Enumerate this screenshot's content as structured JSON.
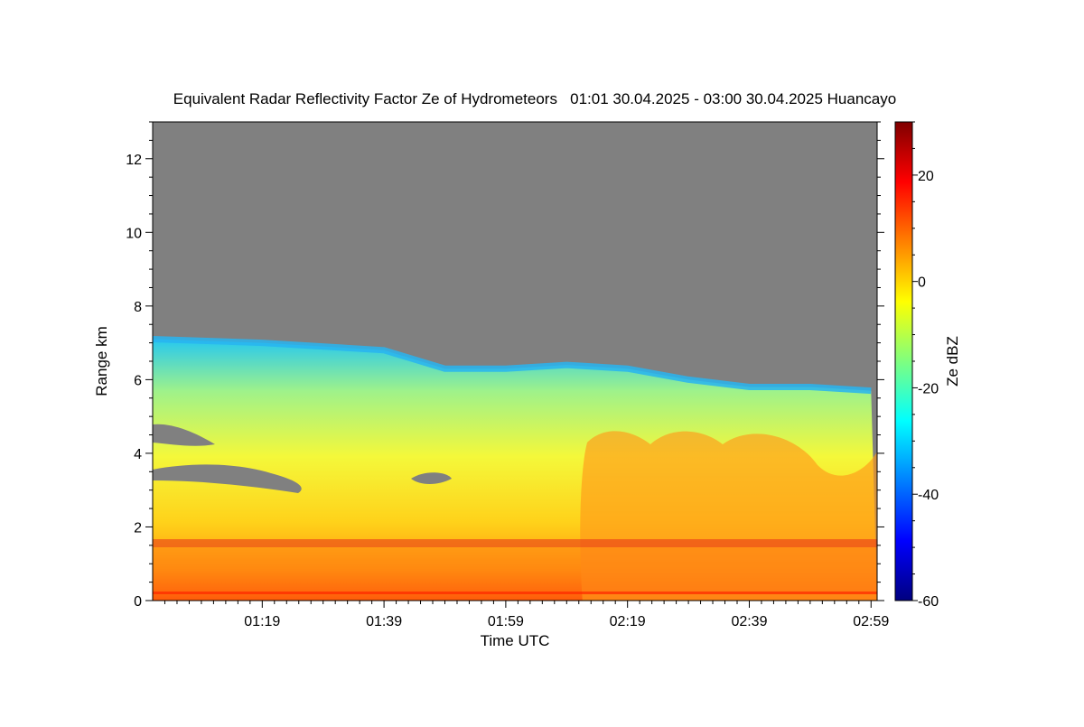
{
  "chart_data": {
    "type": "heatmap",
    "title": "Equivalent Radar Reflectivity Factor Ze of Hydrometeors   01:01 30.04.2025 - 03:00 30.04.2025 Huancayo",
    "xlabel": "Time UTC",
    "ylabel": "Range km",
    "colorbar_label": "Ze dBZ",
    "x_ticks": [
      "01:19",
      "01:39",
      "01:59",
      "02:19",
      "02:39",
      "02:59"
    ],
    "x_range": [
      "01:01",
      "03:00"
    ],
    "y_ticks": [
      0,
      2,
      4,
      6,
      8,
      10,
      12
    ],
    "ylim": [
      0,
      13
    ],
    "colorbar_ticks": [
      20,
      0,
      -20,
      -40,
      -60
    ],
    "colorbar_range": [
      -60,
      30
    ],
    "colormap": "jet",
    "no_data_color": "#808080",
    "echo_top_km": [
      {
        "t": "01:01",
        "top": 7.1
      },
      {
        "t": "01:19",
        "top": 7.0
      },
      {
        "t": "01:39",
        "top": 6.8
      },
      {
        "t": "01:49",
        "top": 6.3
      },
      {
        "t": "01:59",
        "top": 6.3
      },
      {
        "t": "02:09",
        "top": 6.4
      },
      {
        "t": "02:19",
        "top": 6.3
      },
      {
        "t": "02:29",
        "top": 6.0
      },
      {
        "t": "02:39",
        "top": 5.8
      },
      {
        "t": "02:49",
        "top": 5.8
      },
      {
        "t": "02:59",
        "top": 5.7
      }
    ]
  }
}
